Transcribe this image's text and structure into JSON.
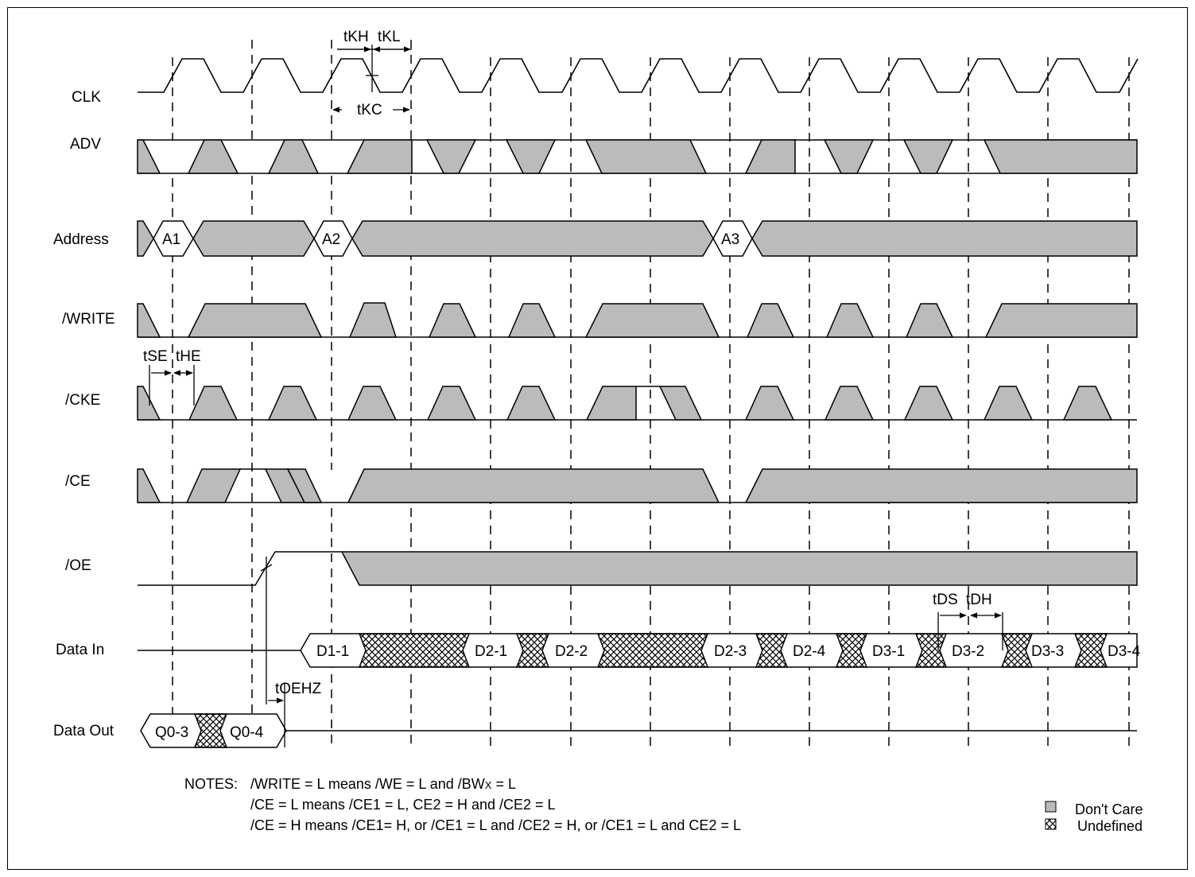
{
  "colors": {
    "dont_care": "#bbbbbb",
    "line": "#000000"
  },
  "signals": {
    "clk": "CLK",
    "adv": "ADV",
    "address": "Address",
    "write": "/WRITE",
    "cke": "/CKE",
    "ce": "/CE",
    "oe": "/OE",
    "data_in": "Data In",
    "data_out": "Data Out"
  },
  "address_labels": [
    "A1",
    "A2",
    "A3"
  ],
  "data_in_labels": [
    "D1-1",
    "D2-1",
    "D2-2",
    "D2-3",
    "D2-4",
    "D3-1",
    "D3-2",
    "D3-3",
    "D3-4"
  ],
  "data_out_labels": [
    "Q0-3",
    "Q0-4"
  ],
  "timing": {
    "tKH": "tKH",
    "tKL": "tKL",
    "tKC": "tKC",
    "tSE": "tSE",
    "tHE": "tHE",
    "tOEHZ": "tOEHZ",
    "tDS": "tDS",
    "tDH": "tDH"
  },
  "notes": {
    "prefix": "NOTES:",
    "line1_a": "/WRITE = L means /WE = L and /BW",
    "line1_sub": "X",
    "line1_b": " = L",
    "line2": "/CE = L means /CE1 = L, CE2 = H and /CE2 = L",
    "line3": "/CE = H means /CE1= H, or /CE1 = L and /CE2 = H, or /CE1 = L and CE2 = L"
  },
  "legend": {
    "dont_care": "Don't Care",
    "undefined": "Undefined"
  }
}
